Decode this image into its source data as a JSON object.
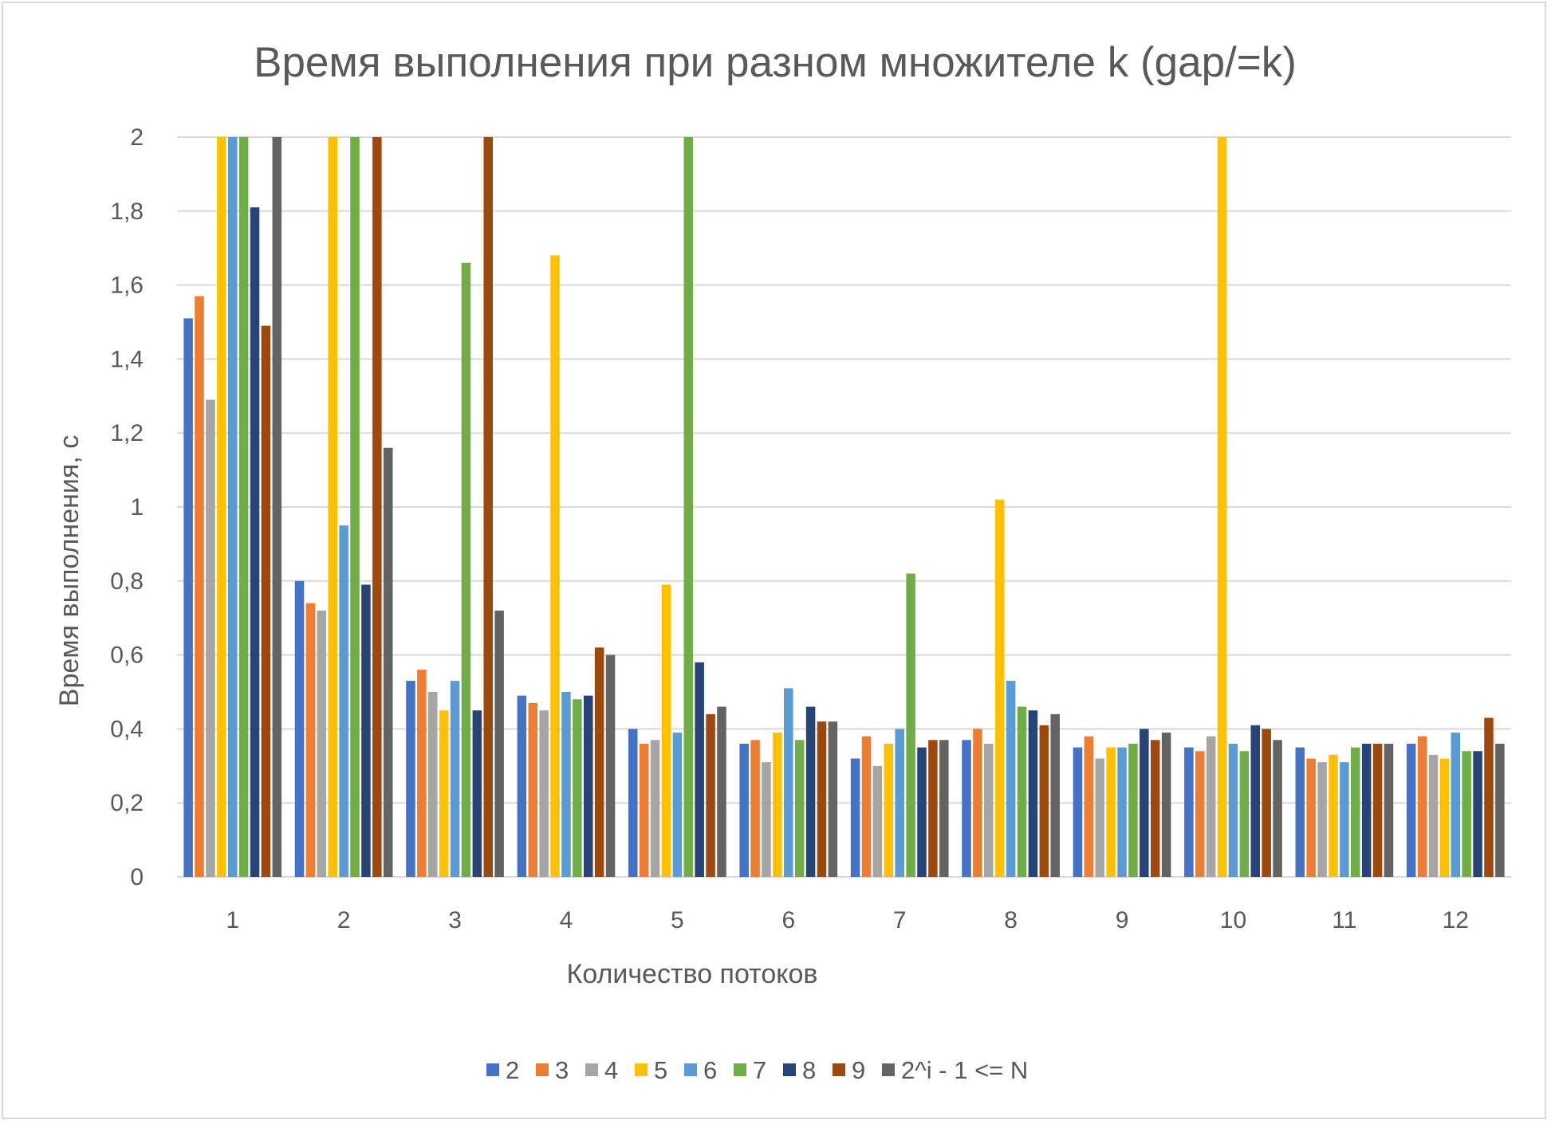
{
  "chart_data": {
    "type": "bar",
    "title": "Время выполнения при разном множителе k (gap/=k)",
    "xlabel": "Количество потоков",
    "ylabel": "Время выполнения, с",
    "ylim": [
      0,
      2
    ],
    "yticks": [
      "0",
      "0,2",
      "0,4",
      "0,6",
      "0,8",
      "1",
      "1,2",
      "1,4",
      "1,6",
      "1,8",
      "2"
    ],
    "grid": true,
    "legend_position": "bottom",
    "categories": [
      "1",
      "2",
      "3",
      "4",
      "5",
      "6",
      "7",
      "8",
      "9",
      "10",
      "11",
      "12"
    ],
    "series": [
      {
        "name": "2",
        "color": "#4472c4",
        "values": [
          1.51,
          0.8,
          0.53,
          0.49,
          0.4,
          0.36,
          0.32,
          0.37,
          0.35,
          0.35,
          0.35,
          0.36
        ]
      },
      {
        "name": "3",
        "color": "#ed7d31",
        "values": [
          1.57,
          0.74,
          0.56,
          0.47,
          0.36,
          0.37,
          0.38,
          0.4,
          0.38,
          0.34,
          0.32,
          0.38
        ]
      },
      {
        "name": "4",
        "color": "#a5a5a5",
        "values": [
          1.29,
          0.72,
          0.5,
          0.45,
          0.37,
          0.31,
          0.3,
          0.36,
          0.32,
          0.38,
          0.31,
          0.33
        ]
      },
      {
        "name": "5",
        "color": "#ffc000",
        "values": [
          2.0,
          2.0,
          0.45,
          1.68,
          0.79,
          0.39,
          0.36,
          1.02,
          0.35,
          2.0,
          0.33,
          0.32
        ]
      },
      {
        "name": "6",
        "color": "#5b9bd5",
        "values": [
          2.0,
          0.95,
          0.53,
          0.5,
          0.39,
          0.51,
          0.4,
          0.53,
          0.35,
          0.36,
          0.31,
          0.39
        ]
      },
      {
        "name": "7",
        "color": "#70ad47",
        "values": [
          2.0,
          2.0,
          1.66,
          0.48,
          2.0,
          0.37,
          0.82,
          0.46,
          0.36,
          0.34,
          0.35,
          0.34
        ]
      },
      {
        "name": "8",
        "color": "#264478",
        "values": [
          1.81,
          0.79,
          0.45,
          0.49,
          0.58,
          0.46,
          0.35,
          0.45,
          0.4,
          0.41,
          0.36,
          0.34
        ]
      },
      {
        "name": "9",
        "color": "#9e480e",
        "values": [
          1.49,
          2.0,
          2.0,
          0.62,
          0.44,
          0.42,
          0.37,
          0.41,
          0.37,
          0.4,
          0.36,
          0.43
        ]
      },
      {
        "name": "2^i - 1 <= N",
        "color": "#636363",
        "values": [
          2.0,
          1.16,
          0.72,
          0.6,
          0.46,
          0.42,
          0.37,
          0.44,
          0.39,
          0.37,
          0.36,
          0.36
        ]
      }
    ]
  }
}
